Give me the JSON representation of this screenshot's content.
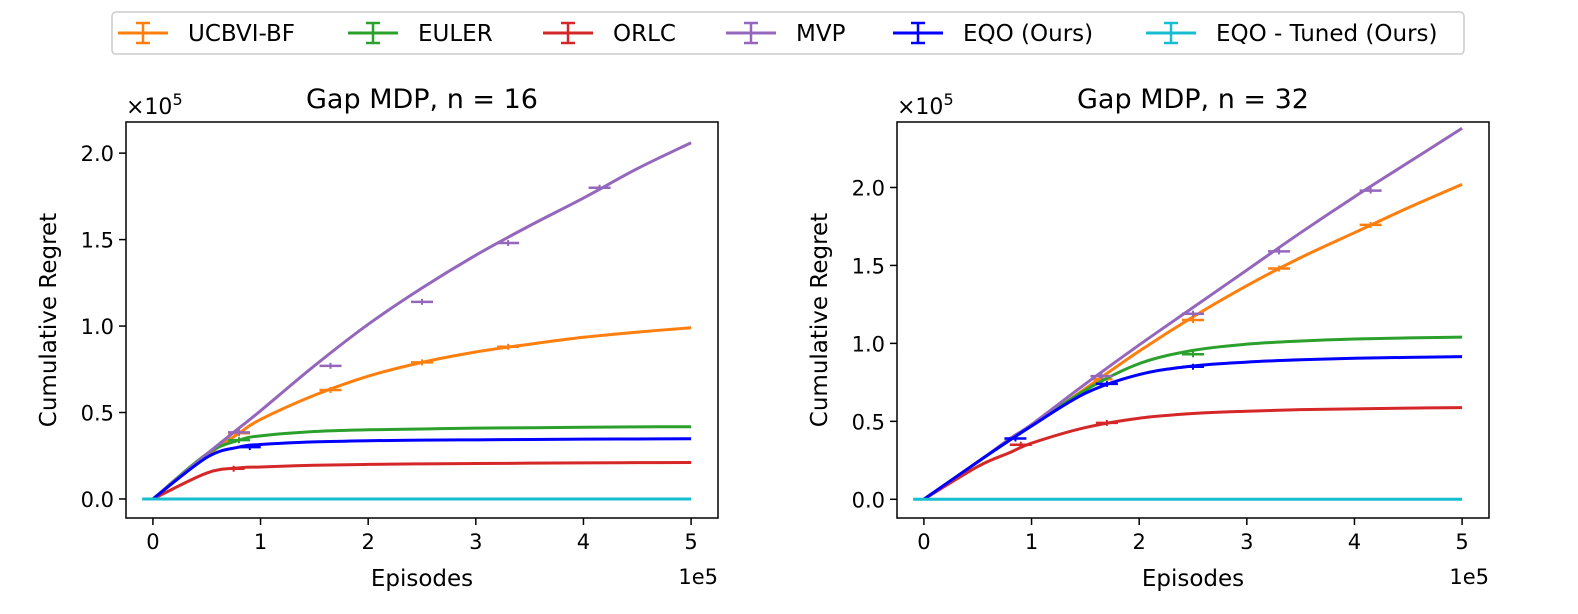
{
  "legend": {
    "entries": [
      {
        "label": "UCBVI-BF",
        "color": "#ff7f0e"
      },
      {
        "label": "EULER",
        "color": "#2ca02c"
      },
      {
        "label": "ORLC",
        "color": "#d62728"
      },
      {
        "label": "MVP",
        "color": "#9467bd"
      },
      {
        "label": "EQO (Ours)",
        "color": "#0000ff"
      },
      {
        "label": "EQO - Tuned (Ours)",
        "color": "#17becf"
      }
    ]
  },
  "chart_data": [
    {
      "type": "line",
      "title": "Gap MDP, n = 16",
      "xlabel": "Episodes",
      "ylabel": "Cumulative Regret",
      "x_multiplier": "1e5",
      "y_multiplier": "×10",
      "y_multiplier_exp": "5",
      "xlim": [
        -0.25,
        5.25
      ],
      "ylim": [
        -0.11,
        2.18
      ],
      "xticks": [
        0,
        1,
        2,
        3,
        4,
        5
      ],
      "xtick_labels": [
        "0",
        "1",
        "2",
        "3",
        "4",
        "5"
      ],
      "yticks": [
        0,
        0.5,
        1.0,
        1.5,
        2.0
      ],
      "ytick_labels": [
        "0.0",
        "0.5",
        "1.0",
        "1.5",
        "2.0"
      ],
      "x": [
        0,
        0.5,
        0.8,
        1.0,
        1.5,
        2.0,
        2.5,
        3.0,
        3.5,
        4.0,
        4.5,
        5.0
      ],
      "series": [
        {
          "name": "UCBVI-BF",
          "color": "#ff7f0e",
          "values": [
            0,
            0.25,
            0.38,
            0.46,
            0.6,
            0.71,
            0.79,
            0.85,
            0.895,
            0.935,
            0.965,
            0.99
          ],
          "errorbars": [
            {
              "x": 0.8,
              "y": 0.38
            },
            {
              "x": 1.65,
              "y": 0.63
            },
            {
              "x": 2.5,
              "y": 0.79
            },
            {
              "x": 3.3,
              "y": 0.88
            }
          ]
        },
        {
          "name": "EULER",
          "color": "#2ca02c",
          "values": [
            0,
            0.26,
            0.34,
            0.365,
            0.39,
            0.4,
            0.405,
            0.41,
            0.412,
            0.415,
            0.417,
            0.418
          ],
          "errorbars": [
            {
              "x": 0.8,
              "y": 0.34
            }
          ]
        },
        {
          "name": "ORLC",
          "color": "#d62728",
          "values": [
            0,
            0.15,
            0.18,
            0.185,
            0.195,
            0.2,
            0.203,
            0.205,
            0.207,
            0.209,
            0.21,
            0.211
          ],
          "errorbars": [
            {
              "x": 0.75,
              "y": 0.175
            }
          ]
        },
        {
          "name": "MVP",
          "color": "#9467bd",
          "values": [
            0,
            0.26,
            0.41,
            0.51,
            0.77,
            1.01,
            1.22,
            1.41,
            1.58,
            1.74,
            1.91,
            2.06
          ],
          "errorbars": [
            {
              "x": 0.8,
              "y": 0.385
            },
            {
              "x": 1.65,
              "y": 0.77
            },
            {
              "x": 2.5,
              "y": 1.14
            },
            {
              "x": 3.3,
              "y": 1.48
            },
            {
              "x": 4.15,
              "y": 1.8
            }
          ]
        },
        {
          "name": "EQO (Ours)",
          "color": "#0000ff",
          "values": [
            0,
            0.24,
            0.3,
            0.315,
            0.33,
            0.337,
            0.34,
            0.342,
            0.344,
            0.346,
            0.347,
            0.348
          ],
          "errorbars": [
            {
              "x": 0.9,
              "y": 0.3
            }
          ]
        },
        {
          "name": "EQO - Tuned (Ours)",
          "color": "#17becf",
          "values": [
            0,
            0,
            0,
            0,
            0,
            0,
            0,
            0,
            0,
            0,
            0,
            0
          ],
          "extend_from": -0.1,
          "errorbars": []
        }
      ]
    },
    {
      "type": "line",
      "title": "Gap MDP, n = 32",
      "xlabel": "Episodes",
      "ylabel": "Cumulative Regret",
      "x_multiplier": "1e5",
      "y_multiplier": "×10",
      "y_multiplier_exp": "5",
      "xlim": [
        -0.25,
        5.25
      ],
      "ylim": [
        -0.12,
        2.42
      ],
      "xticks": [
        0,
        1,
        2,
        3,
        4,
        5
      ],
      "xtick_labels": [
        "0",
        "1",
        "2",
        "3",
        "4",
        "5"
      ],
      "yticks": [
        0,
        0.5,
        1.0,
        1.5,
        2.0
      ],
      "ytick_labels": [
        "0.0",
        "0.5",
        "1.0",
        "1.5",
        "2.0"
      ],
      "x": [
        0,
        0.5,
        0.8,
        1.0,
        1.5,
        2.0,
        2.5,
        3.0,
        3.5,
        4.0,
        4.5,
        5.0
      ],
      "series": [
        {
          "name": "UCBVI-BF",
          "color": "#ff7f0e",
          "values": [
            0,
            0.24,
            0.38,
            0.47,
            0.71,
            0.95,
            1.17,
            1.37,
            1.55,
            1.71,
            1.87,
            2.02
          ],
          "errorbars": [
            {
              "x": 1.65,
              "y": 0.77
            },
            {
              "x": 2.5,
              "y": 1.15
            },
            {
              "x": 3.3,
              "y": 1.48
            },
            {
              "x": 4.15,
              "y": 1.76
            }
          ]
        },
        {
          "name": "EULER",
          "color": "#2ca02c",
          "values": [
            0,
            0.24,
            0.38,
            0.47,
            0.7,
            0.87,
            0.955,
            0.995,
            1.015,
            1.028,
            1.035,
            1.04
          ],
          "errorbars": [
            {
              "x": 2.5,
              "y": 0.93
            }
          ]
        },
        {
          "name": "ORLC",
          "color": "#d62728",
          "values": [
            0,
            0.21,
            0.3,
            0.36,
            0.46,
            0.52,
            0.55,
            0.565,
            0.575,
            0.58,
            0.585,
            0.588
          ],
          "errorbars": [
            {
              "x": 0.9,
              "y": 0.35
            },
            {
              "x": 1.7,
              "y": 0.49
            }
          ]
        },
        {
          "name": "MVP",
          "color": "#9467bd",
          "values": [
            0,
            0.24,
            0.39,
            0.48,
            0.74,
            0.99,
            1.23,
            1.47,
            1.71,
            1.94,
            2.16,
            2.38
          ],
          "errorbars": [
            {
              "x": 1.65,
              "y": 0.79
            },
            {
              "x": 2.5,
              "y": 1.19
            },
            {
              "x": 3.3,
              "y": 1.59
            },
            {
              "x": 4.15,
              "y": 1.98
            }
          ]
        },
        {
          "name": "EQO (Ours)",
          "color": "#0000ff",
          "values": [
            0,
            0.24,
            0.38,
            0.47,
            0.68,
            0.8,
            0.855,
            0.88,
            0.895,
            0.905,
            0.91,
            0.915
          ],
          "errorbars": [
            {
              "x": 0.85,
              "y": 0.39
            },
            {
              "x": 1.7,
              "y": 0.74
            },
            {
              "x": 2.5,
              "y": 0.85
            }
          ]
        },
        {
          "name": "EQO - Tuned (Ours)",
          "color": "#17becf",
          "values": [
            0,
            0,
            0,
            0,
            0,
            0,
            0,
            0,
            0,
            0,
            0,
            0
          ],
          "extend_from": -0.1,
          "errorbars": []
        }
      ]
    }
  ]
}
